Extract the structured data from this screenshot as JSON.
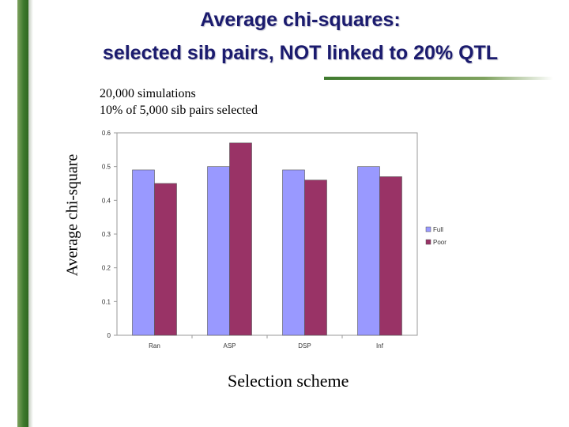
{
  "slide": {
    "title_line1": "Average chi-squares:",
    "title_line2": "selected sib pairs, NOT linked to 20% QTL"
  },
  "colors": {
    "sidebar": "#3f7a2e",
    "title": "#1b1b6e",
    "full": "#9999ff",
    "poor": "#993366"
  },
  "chart_data": {
    "type": "bar",
    "subtitle_line1": "20,000 simulations",
    "subtitle_line2": "10% of 5,000 sib pairs selected",
    "xlabel": "Selection scheme",
    "ylabel": "Average chi-square",
    "categories": [
      "Ran",
      "ASP",
      "DSP",
      "Inf"
    ],
    "series": [
      {
        "name": "Full",
        "color": "#9999ff",
        "values": [
          0.49,
          0.5,
          0.49,
          0.5
        ]
      },
      {
        "name": "Poor",
        "color": "#993366",
        "values": [
          0.45,
          0.57,
          0.46,
          0.47
        ]
      }
    ],
    "ylim": [
      0,
      0.6
    ],
    "yticks": [
      "0",
      "0.1",
      "0.2",
      "0.3",
      "0.4",
      "0.5",
      "0.6"
    ],
    "grid": false,
    "legend": "right"
  }
}
